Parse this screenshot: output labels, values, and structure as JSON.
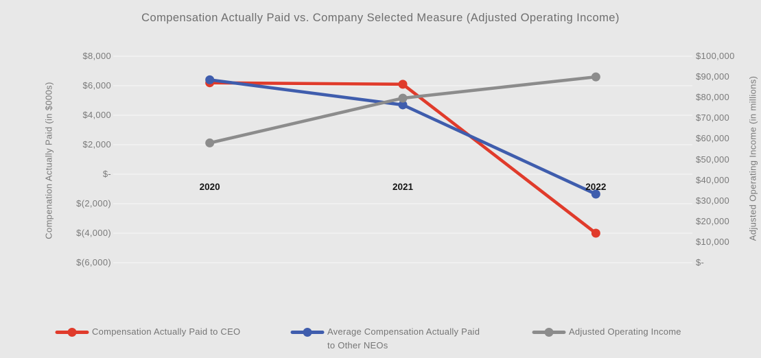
{
  "title": "Compensation Actually Paid vs. Company Selected Measure (Adjusted Operating Income)",
  "chart_data": {
    "type": "line",
    "title": "Compensation Actually Paid vs. Company Selected Measure (Adjusted Operating Income)",
    "categories": [
      "2020",
      "2021",
      "2022"
    ],
    "series": [
      {
        "name": "Compensation Actually Paid to CEO",
        "axis": "left",
        "color": "#e03b2b",
        "values": [
          6200,
          6100,
          -4000
        ]
      },
      {
        "name": "Average Compensation Actually Paid to Other NEOs",
        "axis": "left",
        "color": "#3f5dad",
        "values": [
          6400,
          4700,
          -1350
        ]
      },
      {
        "name": "Adjusted Operating Income",
        "axis": "right",
        "color": "#8c8c8c",
        "values": [
          58000,
          79700,
          90000
        ]
      }
    ],
    "left_axis": {
      "title": "Compenation Actually Paid (in $000s)",
      "min": -6000,
      "max": 8000,
      "step": 2000,
      "tick_labels": [
        "$8,000",
        "$6,000",
        "$4,000",
        "$2,000",
        "$-",
        "$(2,000)",
        "$(4,000)",
        "$(6,000)"
      ]
    },
    "right_axis": {
      "title": "Adjusted Operating Income (in millions)",
      "min": 0,
      "max": 100000,
      "step": 10000,
      "tick_labels": [
        "$100,000",
        "$90,000",
        "$80,000",
        "$70,000",
        "$60,000",
        "$50,000",
        "$40,000",
        "$30,000",
        "$20,000",
        "$10,000",
        "$-"
      ]
    },
    "grid": true,
    "legend_position": "bottom",
    "legend": [
      {
        "label": "Compensation Actually Paid to CEO",
        "color": "#e03b2b"
      },
      {
        "label": "Average Compensation Actually Paid\nto Other NEOs",
        "color": "#3f5dad"
      },
      {
        "label": "Adjusted Operating Income",
        "color": "#8c8c8c"
      }
    ],
    "colors": {
      "background": "#e8e8e8",
      "gridline": "#f5f5f5",
      "axis_text": "#7a7a7a",
      "title_text": "#6e6e6e",
      "year_label_text": "#151515"
    }
  }
}
